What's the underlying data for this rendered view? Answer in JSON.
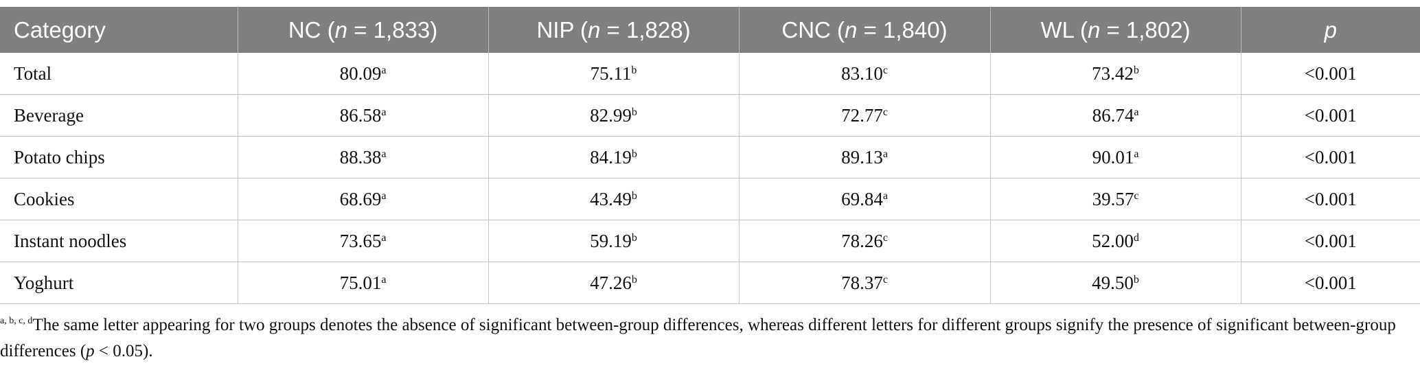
{
  "table": {
    "header": [
      {
        "parts": [
          "Category"
        ]
      },
      {
        "parts": [
          "NC (",
          "n",
          " = 1,833)"
        ]
      },
      {
        "parts": [
          "NIP (",
          "n",
          " = 1,828)"
        ]
      },
      {
        "parts": [
          "CNC (",
          "n",
          " = 1,840)"
        ]
      },
      {
        "parts": [
          "WL (",
          "n",
          " = 1,802)"
        ]
      },
      {
        "parts": [
          "",
          "p",
          ""
        ]
      }
    ],
    "rows": [
      {
        "label": "Total",
        "cells": [
          {
            "value": "80.09",
            "sup": "a"
          },
          {
            "value": "75.11",
            "sup": "b"
          },
          {
            "value": "83.10",
            "sup": "c"
          },
          {
            "value": "73.42",
            "sup": "b"
          }
        ],
        "p": "<0.001"
      },
      {
        "label": "Beverage",
        "cells": [
          {
            "value": "86.58",
            "sup": "a"
          },
          {
            "value": "82.99",
            "sup": "b"
          },
          {
            "value": "72.77",
            "sup": "c"
          },
          {
            "value": "86.74",
            "sup": "a"
          }
        ],
        "p": "<0.001"
      },
      {
        "label": "Potato chips",
        "cells": [
          {
            "value": "88.38",
            "sup": "a"
          },
          {
            "value": "84.19",
            "sup": "b"
          },
          {
            "value": "89.13",
            "sup": "a"
          },
          {
            "value": "90.01",
            "sup": "a"
          }
        ],
        "p": "<0.001"
      },
      {
        "label": "Cookies",
        "cells": [
          {
            "value": "68.69",
            "sup": "a"
          },
          {
            "value": "43.49",
            "sup": "b"
          },
          {
            "value": "69.84",
            "sup": "a"
          },
          {
            "value": "39.57",
            "sup": "c"
          }
        ],
        "p": "<0.001"
      },
      {
        "label": "Instant noodles",
        "cells": [
          {
            "value": "73.65",
            "sup": "a"
          },
          {
            "value": "59.19",
            "sup": "b"
          },
          {
            "value": "78.26",
            "sup": "c"
          },
          {
            "value": "52.00",
            "sup": "d"
          }
        ],
        "p": "<0.001"
      },
      {
        "label": "Yoghurt",
        "cells": [
          {
            "value": "75.01",
            "sup": "a"
          },
          {
            "value": "47.26",
            "sup": "b"
          },
          {
            "value": "78.37",
            "sup": "c"
          },
          {
            "value": "49.50",
            "sup": "b"
          }
        ],
        "p": "<0.001"
      }
    ]
  },
  "footnote": {
    "sup": "a, b, c, d",
    "parts": [
      "The same letter appearing for two groups denotes the absence of significant between-group differences, whereas different letters for different groups signify the presence of significant between-group differences (",
      "p",
      " < 0.05)."
    ]
  }
}
